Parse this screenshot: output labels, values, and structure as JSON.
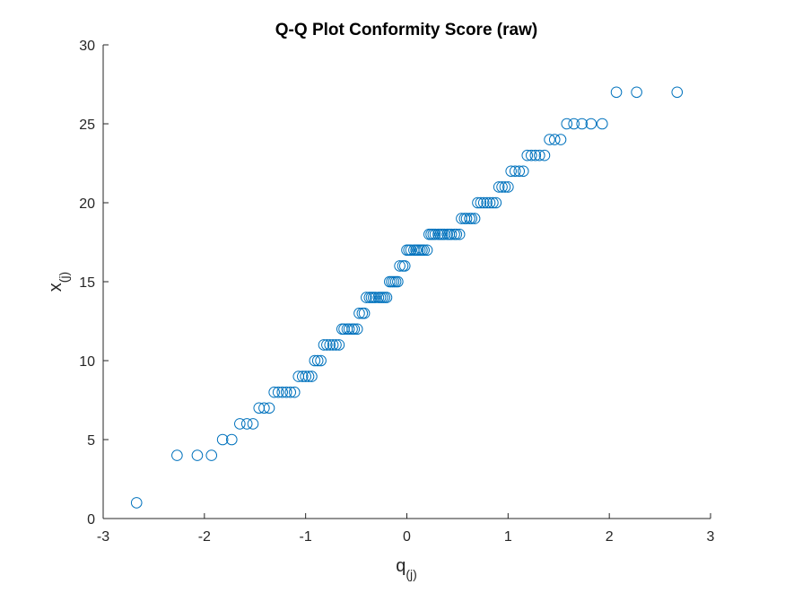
{
  "colors": {
    "marker": "#0072BD",
    "axis": "#262626",
    "background": "#ffffff"
  },
  "chart_data": {
    "type": "scatter",
    "title": "Q-Q Plot Conformity Score (raw)",
    "xlabel": {
      "base": "q",
      "subscript": "(j)"
    },
    "ylabel": {
      "base": "x",
      "subscript": "(j)"
    },
    "xlim": [
      -3,
      3
    ],
    "ylim": [
      0,
      30
    ],
    "xticks": [
      -3,
      -2,
      -1,
      0,
      1,
      2,
      3
    ],
    "yticks": [
      0,
      5,
      10,
      15,
      20,
      25,
      30
    ],
    "grid": false,
    "marker": "open-circle",
    "series": [
      {
        "points": [
          [
            -2.67,
            1
          ],
          [
            -2.27,
            4
          ],
          [
            -2.07,
            4
          ],
          [
            -1.93,
            4
          ],
          [
            -1.82,
            5
          ],
          [
            -1.73,
            5
          ],
          [
            -1.65,
            6
          ],
          [
            -1.58,
            6
          ],
          [
            -1.52,
            6
          ],
          [
            -1.46,
            7
          ],
          [
            -1.41,
            7
          ],
          [
            -1.36,
            7
          ],
          [
            -1.31,
            8
          ],
          [
            -1.27,
            8
          ],
          [
            -1.23,
            8
          ],
          [
            -1.19,
            8
          ],
          [
            -1.15,
            8
          ],
          [
            -1.11,
            8
          ],
          [
            -1.07,
            9
          ],
          [
            -1.03,
            9
          ],
          [
            -1.0,
            9
          ],
          [
            -0.97,
            9
          ],
          [
            -0.94,
            9
          ],
          [
            -0.91,
            10
          ],
          [
            -0.88,
            10
          ],
          [
            -0.85,
            10
          ],
          [
            -0.82,
            11
          ],
          [
            -0.79,
            11
          ],
          [
            -0.76,
            11
          ],
          [
            -0.73,
            11
          ],
          [
            -0.7,
            11
          ],
          [
            -0.67,
            11
          ],
          [
            -0.64,
            12
          ],
          [
            -0.62,
            12
          ],
          [
            -0.59,
            12
          ],
          [
            -0.57,
            12
          ],
          [
            -0.54,
            12
          ],
          [
            -0.52,
            12
          ],
          [
            -0.49,
            12
          ],
          [
            -0.47,
            13
          ],
          [
            -0.44,
            13
          ],
          [
            -0.42,
            13
          ],
          [
            -0.4,
            14
          ],
          [
            -0.37,
            14
          ],
          [
            -0.35,
            14
          ],
          [
            -0.33,
            14
          ],
          [
            -0.31,
            14
          ],
          [
            -0.28,
            14
          ],
          [
            -0.26,
            14
          ],
          [
            -0.24,
            14
          ],
          [
            -0.22,
            14
          ],
          [
            -0.2,
            14
          ],
          [
            -0.17,
            15
          ],
          [
            -0.15,
            15
          ],
          [
            -0.13,
            15
          ],
          [
            -0.11,
            15
          ],
          [
            -0.09,
            15
          ],
          [
            -0.07,
            16
          ],
          [
            -0.04,
            16
          ],
          [
            -0.02,
            16
          ],
          [
            0.0,
            17
          ],
          [
            0.02,
            17
          ],
          [
            0.04,
            17
          ],
          [
            0.07,
            17
          ],
          [
            0.09,
            17
          ],
          [
            0.11,
            17
          ],
          [
            0.13,
            17
          ],
          [
            0.15,
            17
          ],
          [
            0.17,
            17
          ],
          [
            0.2,
            17
          ],
          [
            0.22,
            18
          ],
          [
            0.24,
            18
          ],
          [
            0.26,
            18
          ],
          [
            0.28,
            18
          ],
          [
            0.31,
            18
          ],
          [
            0.33,
            18
          ],
          [
            0.35,
            18
          ],
          [
            0.37,
            18
          ],
          [
            0.4,
            18
          ],
          [
            0.42,
            18
          ],
          [
            0.44,
            18
          ],
          [
            0.47,
            18
          ],
          [
            0.49,
            18
          ],
          [
            0.52,
            18
          ],
          [
            0.54,
            19
          ],
          [
            0.57,
            19
          ],
          [
            0.59,
            19
          ],
          [
            0.62,
            19
          ],
          [
            0.64,
            19
          ],
          [
            0.67,
            19
          ],
          [
            0.7,
            20
          ],
          [
            0.73,
            20
          ],
          [
            0.76,
            20
          ],
          [
            0.79,
            20
          ],
          [
            0.82,
            20
          ],
          [
            0.85,
            20
          ],
          [
            0.88,
            20
          ],
          [
            0.91,
            21
          ],
          [
            0.94,
            21
          ],
          [
            0.97,
            21
          ],
          [
            1.0,
            21
          ],
          [
            1.03,
            22
          ],
          [
            1.07,
            22
          ],
          [
            1.11,
            22
          ],
          [
            1.15,
            22
          ],
          [
            1.19,
            23
          ],
          [
            1.23,
            23
          ],
          [
            1.27,
            23
          ],
          [
            1.31,
            23
          ],
          [
            1.36,
            23
          ],
          [
            1.41,
            24
          ],
          [
            1.46,
            24
          ],
          [
            1.52,
            24
          ],
          [
            1.58,
            25
          ],
          [
            1.65,
            25
          ],
          [
            1.73,
            25
          ],
          [
            1.82,
            25
          ],
          [
            1.93,
            25
          ],
          [
            2.07,
            27
          ],
          [
            2.27,
            27
          ],
          [
            2.67,
            27
          ]
        ]
      }
    ]
  }
}
